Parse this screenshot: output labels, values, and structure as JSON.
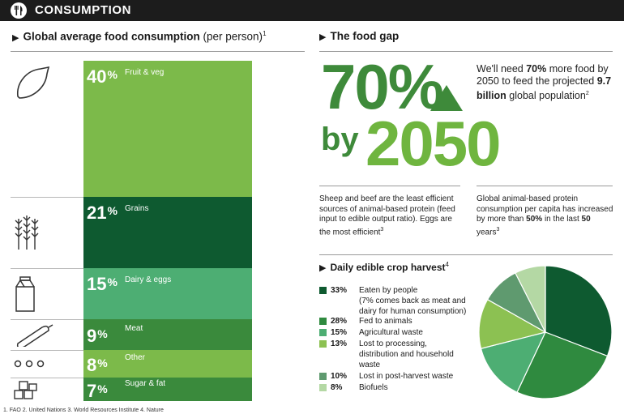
{
  "header": {
    "title": "CONSUMPTION",
    "logo_icon": "fork-knife-icon"
  },
  "consumption": {
    "title": "Global average food consumption",
    "title_suffix": "(per person)",
    "title_note": "1"
  },
  "chart_data": [
    {
      "type": "bar",
      "orientation": "stacked-vertical",
      "title": "Global average food consumption (per person)",
      "unit": "%",
      "categories": [
        "Fruit & veg",
        "Grains",
        "Dairy & eggs",
        "Meat",
        "Other",
        "Sugar & fat"
      ],
      "values": [
        40,
        21,
        15,
        9,
        8,
        7
      ],
      "colors": [
        "#7cba4a",
        "#0e5a30",
        "#4dae73",
        "#3a8a3c",
        "#7cba4a",
        "#3a8a3c"
      ],
      "icons": [
        "lemon-icon",
        "wheat-icon",
        "milk-carton-icon",
        "sausage-icon",
        "dots-icon",
        "sugar-cubes-icon"
      ]
    },
    {
      "type": "pie",
      "title": "Daily edible crop harvest",
      "title_note": "4",
      "unit": "%",
      "categories": [
        "Eaten by people",
        "Fed to animals",
        "Agricultural waste",
        "Lost to processing, distribution and household waste",
        "Lost in post-harvest waste",
        "Biofuels"
      ],
      "values": [
        33,
        28,
        15,
        13,
        10,
        8
      ],
      "colors": [
        "#0e5a30",
        "#2f8a3f",
        "#4dae73",
        "#8cc152",
        "#5f9a6f",
        "#b4d8a4"
      ]
    }
  ],
  "food_gap": {
    "title": "The food gap",
    "big_percent": "70%",
    "by": "by",
    "year": "2050",
    "text_parts": [
      "We'll need ",
      "70%",
      " more food by 2050 to feed the projected ",
      "9.7 billion",
      " global population",
      "2"
    ],
    "note_left": {
      "parts": [
        "Sheep and beef are the least efficient sources of animal-based protein (feed input to edible output ratio). Eggs are the most efficient",
        "3"
      ]
    },
    "note_right": {
      "parts": [
        "Global animal-based protein consumption per capita has increased by more than ",
        "50%",
        " in the last ",
        "50",
        " years",
        "3"
      ]
    }
  },
  "harvest_legend": [
    {
      "pct": "33%",
      "label": "Eaten by people",
      "sub": "(7% comes back as meat and dairy for human consumption)"
    },
    {
      "pct": "28%",
      "label": "Fed to animals"
    },
    {
      "pct": "15%",
      "label": "Agricultural waste"
    },
    {
      "pct": "13%",
      "label": "Lost to processing, distribution and household waste"
    },
    {
      "pct": "10%",
      "label": "Lost in post-harvest waste"
    },
    {
      "pct": "8%",
      "label": "Biofuels"
    }
  ],
  "footnote": "1. FAO  2. United Nations  3. World Resources Institute  4. Nature"
}
